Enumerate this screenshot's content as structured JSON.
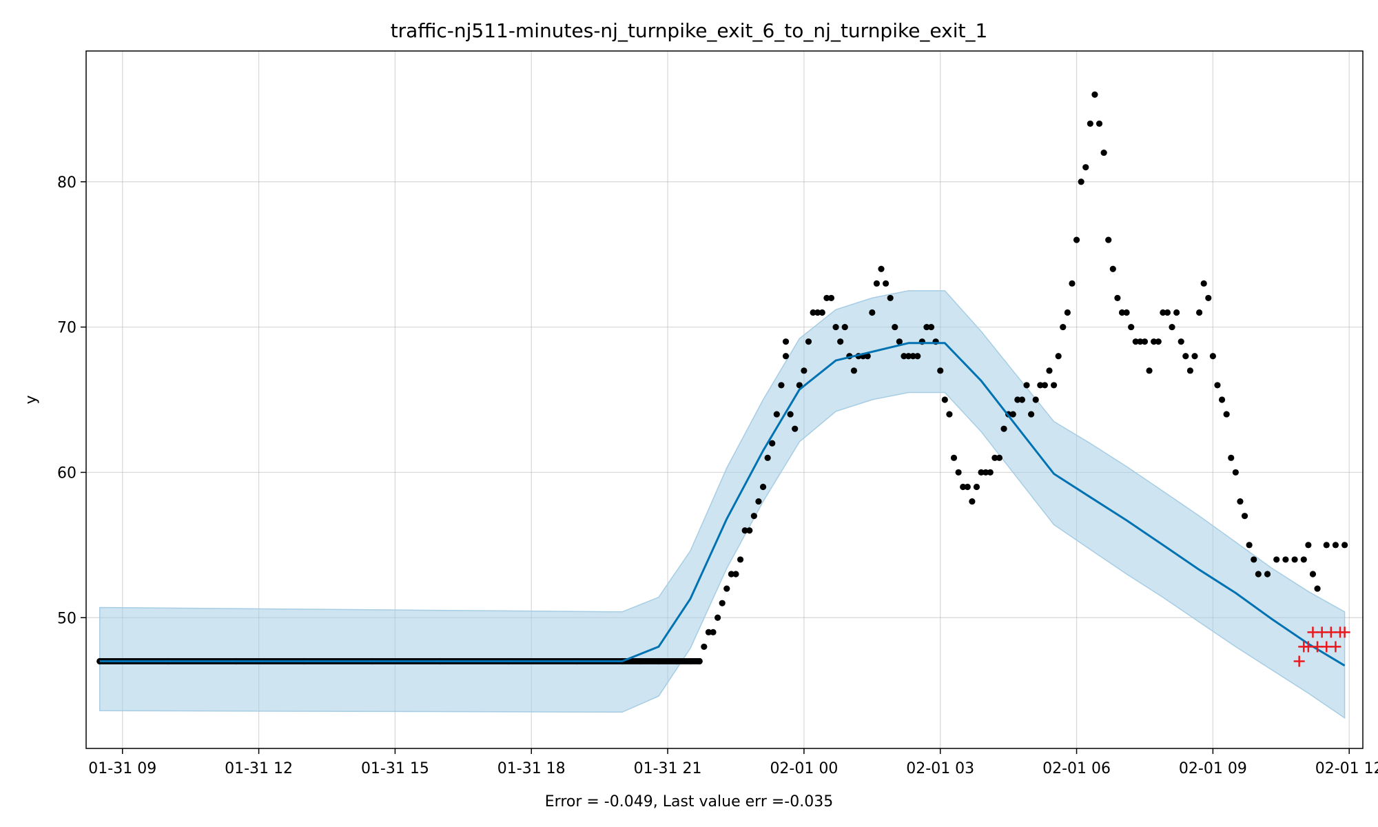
{
  "chart_data": {
    "type": "line",
    "title": "traffic-nj511-minutes-nj_turnpike_exit_6_to_nj_turnpike_exit_1",
    "xlabel": "Error = -0.049, Last value err =-0.035",
    "ylabel": "y",
    "x_axis": {
      "unit": "hours",
      "range": [
        -0.8,
        27.3
      ],
      "tick_values": [
        0,
        3,
        6,
        9,
        12,
        15,
        18,
        21,
        24,
        27
      ],
      "tick_labels": [
        "01-31 09",
        "01-31 12",
        "01-31 15",
        "01-31 18",
        "01-31 21",
        "02-01 00",
        "02-01 03",
        "02-01 06",
        "02-01 09",
        "02-01 12"
      ]
    },
    "y_axis": {
      "range": [
        41,
        89
      ],
      "tick_values": [
        50,
        60,
        70,
        80
      ],
      "tick_labels": [
        "50",
        "60",
        "70",
        "80"
      ]
    },
    "grid": true,
    "colors": {
      "forecast_line": "#0072b2",
      "band_fill": "#a6cde4",
      "observed": "#000000",
      "future": "#e8191f"
    },
    "series": [
      {
        "kind": "forecast",
        "points": [
          [
            -0.5,
            47.0
          ],
          [
            11.0,
            47.0
          ],
          [
            11.8,
            48.0
          ],
          [
            12.5,
            51.3
          ],
          [
            13.3,
            56.8
          ],
          [
            14.1,
            61.5
          ],
          [
            14.9,
            65.7
          ],
          [
            15.7,
            67.7
          ],
          [
            16.5,
            68.3
          ],
          [
            17.3,
            68.9
          ],
          [
            18.1,
            68.9
          ],
          [
            18.9,
            66.3
          ],
          [
            19.7,
            63.1
          ],
          [
            20.5,
            59.9
          ],
          [
            21.3,
            58.3
          ],
          [
            22.1,
            56.7
          ],
          [
            22.9,
            55.0
          ],
          [
            23.7,
            53.3
          ],
          [
            24.5,
            51.7
          ],
          [
            25.3,
            49.9
          ],
          [
            26.1,
            48.2
          ],
          [
            26.9,
            46.7
          ]
        ]
      },
      {
        "kind": "interval",
        "upper": [
          [
            -0.5,
            50.7
          ],
          [
            11.0,
            50.4
          ],
          [
            11.8,
            51.4
          ],
          [
            12.5,
            54.6
          ],
          [
            13.3,
            60.3
          ],
          [
            14.1,
            65.0
          ],
          [
            14.9,
            69.2
          ],
          [
            15.7,
            71.2
          ],
          [
            16.5,
            72.0
          ],
          [
            17.3,
            72.5
          ],
          [
            18.1,
            72.5
          ],
          [
            18.9,
            69.7
          ],
          [
            19.7,
            66.6
          ],
          [
            20.5,
            63.5
          ],
          [
            21.3,
            62.0
          ],
          [
            22.1,
            60.4
          ],
          [
            22.9,
            58.7
          ],
          [
            23.7,
            57.0
          ],
          [
            24.5,
            55.2
          ],
          [
            25.3,
            53.4
          ],
          [
            26.1,
            51.8
          ],
          [
            26.9,
            50.4
          ]
        ],
        "lower": [
          [
            -0.5,
            43.6
          ],
          [
            11.0,
            43.5
          ],
          [
            11.8,
            44.6
          ],
          [
            12.5,
            47.9
          ],
          [
            13.3,
            53.4
          ],
          [
            14.1,
            58.0
          ],
          [
            14.9,
            62.1
          ],
          [
            15.7,
            64.2
          ],
          [
            16.5,
            65.0
          ],
          [
            17.3,
            65.5
          ],
          [
            18.1,
            65.5
          ],
          [
            18.9,
            62.8
          ],
          [
            19.7,
            59.6
          ],
          [
            20.5,
            56.4
          ],
          [
            21.3,
            54.7
          ],
          [
            22.1,
            53.0
          ],
          [
            22.9,
            51.4
          ],
          [
            23.7,
            49.7
          ],
          [
            24.5,
            48.0
          ],
          [
            25.3,
            46.4
          ],
          [
            26.1,
            44.8
          ],
          [
            26.9,
            43.1
          ]
        ]
      },
      {
        "kind": "observed",
        "points": [
          [
            -0.5,
            47
          ],
          [
            1.0,
            47
          ],
          [
            2.5,
            47
          ],
          [
            4.0,
            47
          ],
          [
            5.5,
            47
          ],
          [
            7.0,
            47
          ],
          [
            8.5,
            47
          ],
          [
            10.0,
            47
          ],
          [
            11.0,
            47
          ],
          [
            11.4,
            47
          ],
          [
            11.8,
            47
          ],
          [
            12.2,
            47
          ],
          [
            12.5,
            47
          ],
          [
            12.7,
            47
          ],
          [
            12.8,
            48
          ],
          [
            12.9,
            49
          ],
          [
            13.0,
            49
          ],
          [
            13.1,
            50
          ],
          [
            13.2,
            51
          ],
          [
            13.3,
            52
          ],
          [
            13.4,
            53
          ],
          [
            13.5,
            53
          ],
          [
            13.6,
            54
          ],
          [
            13.7,
            56
          ],
          [
            13.8,
            56
          ],
          [
            13.9,
            57
          ],
          [
            14.0,
            58
          ],
          [
            14.1,
            59
          ],
          [
            14.2,
            61
          ],
          [
            14.3,
            62
          ],
          [
            14.4,
            64
          ],
          [
            14.5,
            66
          ],
          [
            14.6,
            68
          ],
          [
            14.6,
            69
          ],
          [
            14.7,
            64
          ],
          [
            14.8,
            63
          ],
          [
            14.9,
            66
          ],
          [
            15.0,
            67
          ],
          [
            15.1,
            69
          ],
          [
            15.2,
            71
          ],
          [
            15.3,
            71
          ],
          [
            15.4,
            71
          ],
          [
            15.5,
            72
          ],
          [
            15.6,
            72
          ],
          [
            15.7,
            70
          ],
          [
            15.8,
            69
          ],
          [
            15.9,
            70
          ],
          [
            16.0,
            68
          ],
          [
            16.1,
            67
          ],
          [
            16.2,
            68
          ],
          [
            16.3,
            68
          ],
          [
            16.4,
            68
          ],
          [
            16.5,
            71
          ],
          [
            16.6,
            73
          ],
          [
            16.7,
            74
          ],
          [
            16.8,
            73
          ],
          [
            16.9,
            72
          ],
          [
            17.0,
            70
          ],
          [
            17.1,
            69
          ],
          [
            17.2,
            68
          ],
          [
            17.3,
            68
          ],
          [
            17.4,
            68
          ],
          [
            17.5,
            68
          ],
          [
            17.6,
            69
          ],
          [
            17.7,
            70
          ],
          [
            17.8,
            70
          ],
          [
            17.9,
            69
          ],
          [
            18.0,
            67
          ],
          [
            18.1,
            65
          ],
          [
            18.2,
            64
          ],
          [
            18.3,
            61
          ],
          [
            18.4,
            60
          ],
          [
            18.5,
            59
          ],
          [
            18.6,
            59
          ],
          [
            18.7,
            58
          ],
          [
            18.8,
            59
          ],
          [
            18.9,
            60
          ],
          [
            19.0,
            60
          ],
          [
            19.1,
            60
          ],
          [
            19.2,
            61
          ],
          [
            19.3,
            61
          ],
          [
            19.4,
            63
          ],
          [
            19.5,
            64
          ],
          [
            19.6,
            64
          ],
          [
            19.7,
            65
          ],
          [
            19.8,
            65
          ],
          [
            19.9,
            66
          ],
          [
            20.0,
            64
          ],
          [
            20.1,
            65
          ],
          [
            20.2,
            66
          ],
          [
            20.3,
            66
          ],
          [
            20.4,
            67
          ],
          [
            20.5,
            66
          ],
          [
            20.6,
            68
          ],
          [
            20.7,
            70
          ],
          [
            20.8,
            71
          ],
          [
            20.9,
            73
          ],
          [
            21.0,
            76
          ],
          [
            21.1,
            80
          ],
          [
            21.2,
            81
          ],
          [
            21.3,
            84
          ],
          [
            21.4,
            86
          ],
          [
            21.5,
            84
          ],
          [
            21.6,
            82
          ],
          [
            21.7,
            76
          ],
          [
            21.8,
            74
          ],
          [
            21.9,
            72
          ],
          [
            22.0,
            71
          ],
          [
            22.1,
            71
          ],
          [
            22.2,
            70
          ],
          [
            22.3,
            69
          ],
          [
            22.4,
            69
          ],
          [
            22.5,
            69
          ],
          [
            22.6,
            67
          ],
          [
            22.7,
            69
          ],
          [
            22.8,
            69
          ],
          [
            22.9,
            71
          ],
          [
            23.0,
            71
          ],
          [
            23.1,
            70
          ],
          [
            23.2,
            71
          ],
          [
            23.3,
            69
          ],
          [
            23.4,
            68
          ],
          [
            23.5,
            67
          ],
          [
            23.6,
            68
          ],
          [
            23.7,
            71
          ],
          [
            23.8,
            73
          ],
          [
            23.9,
            72
          ],
          [
            24.0,
            68
          ],
          [
            24.1,
            66
          ],
          [
            24.2,
            65
          ],
          [
            24.3,
            64
          ],
          [
            24.4,
            61
          ],
          [
            24.5,
            60
          ],
          [
            24.6,
            58
          ],
          [
            24.7,
            57
          ],
          [
            24.8,
            55
          ],
          [
            24.9,
            54
          ],
          [
            25.0,
            53
          ],
          [
            25.2,
            53
          ],
          [
            25.4,
            54
          ],
          [
            25.6,
            54
          ],
          [
            25.8,
            54
          ],
          [
            26.0,
            54
          ],
          [
            26.1,
            55
          ],
          [
            26.2,
            53
          ],
          [
            26.3,
            52
          ],
          [
            26.5,
            55
          ],
          [
            26.7,
            55
          ],
          [
            26.9,
            55
          ]
        ]
      },
      {
        "kind": "future",
        "points": [
          [
            25.9,
            47
          ],
          [
            26.0,
            48
          ],
          [
            26.1,
            48
          ],
          [
            26.2,
            49
          ],
          [
            26.3,
            48
          ],
          [
            26.4,
            49
          ],
          [
            26.5,
            48
          ],
          [
            26.6,
            49
          ],
          [
            26.7,
            48
          ],
          [
            26.8,
            49
          ],
          [
            26.9,
            49
          ]
        ]
      }
    ]
  }
}
